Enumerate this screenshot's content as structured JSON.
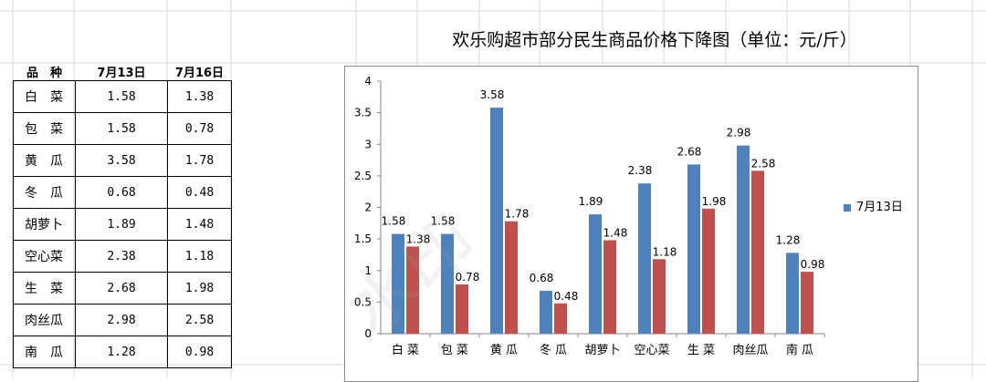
{
  "table": {
    "headers": [
      "品　种",
      "7月13日",
      "7月16日"
    ],
    "rows": [
      [
        "白　菜",
        "1.58",
        "1.38"
      ],
      [
        "包　菜",
        "1.58",
        "0.78"
      ],
      [
        "黄　瓜",
        "3.58",
        "1.78"
      ],
      [
        "冬　瓜",
        "0.68",
        "0.48"
      ],
      [
        "胡萝卜",
        "1.89",
        "1.48"
      ],
      [
        "空心菜",
        "2.38",
        "1.18"
      ],
      [
        "生　菜",
        "2.68",
        "1.98"
      ],
      [
        "肉丝瓜",
        "2.98",
        "2.58"
      ],
      [
        "南　瓜",
        "1.28",
        "0.98"
      ]
    ]
  },
  "watermark": "水印",
  "chart_data": {
    "type": "bar",
    "title": "欢乐购超市部分民生商品价格下降图（单位：元/斤）",
    "categories": [
      "白 菜",
      "包 菜",
      "黄 瓜",
      "冬 瓜",
      "胡萝卜",
      "空心菜",
      "生 菜",
      "肉丝瓜",
      "南 瓜"
    ],
    "series": [
      {
        "name": "7月13日",
        "values": [
          1.58,
          1.58,
          3.58,
          0.68,
          1.89,
          2.38,
          2.68,
          2.98,
          1.28
        ],
        "color": "#4f81bd"
      },
      {
        "name": "",
        "values": [
          1.38,
          0.78,
          1.78,
          0.48,
          1.48,
          1.18,
          1.98,
          2.58,
          0.98
        ],
        "color": "#c0504d"
      }
    ],
    "ylim": [
      0,
      4
    ],
    "yticks": [
      "0",
      "0.5",
      "1",
      "1.5",
      "2",
      "2.5",
      "3",
      "3.5",
      "4"
    ],
    "grid": false,
    "legend": "right"
  }
}
